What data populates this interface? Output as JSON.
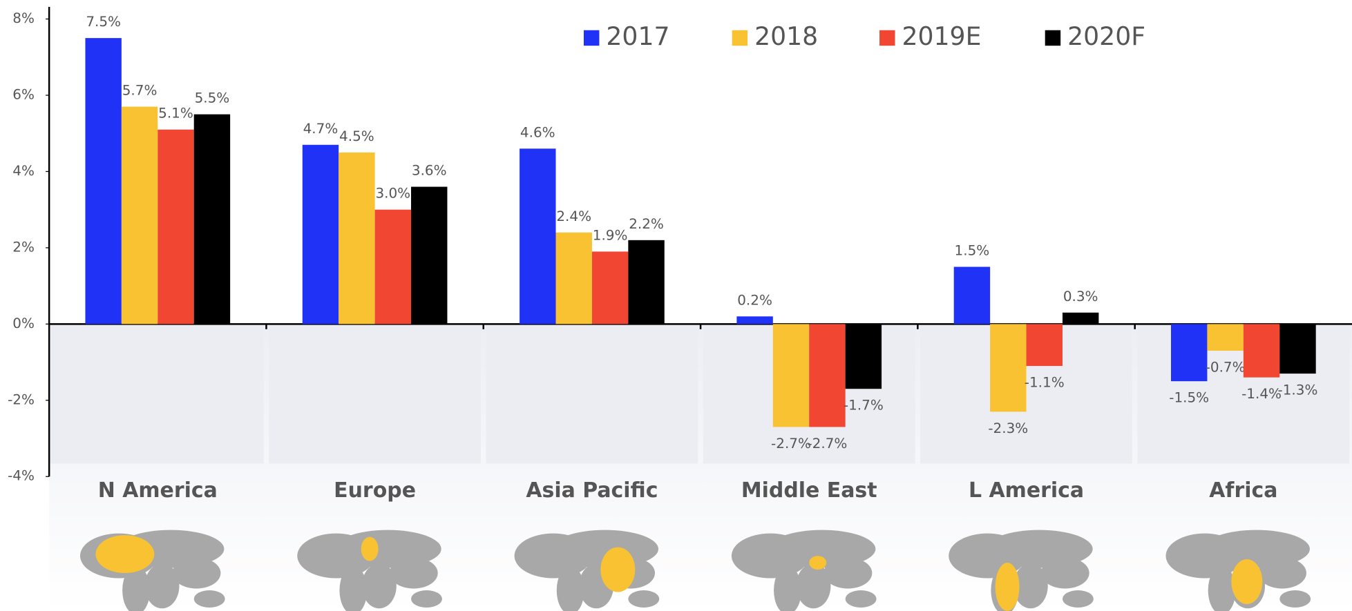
{
  "chart_data": {
    "type": "bar",
    "categories": [
      "N America",
      "Europe",
      "Asia Pacific",
      "Middle East",
      "L America",
      "Africa"
    ],
    "series": [
      {
        "name": "2017",
        "color": "#2032f5",
        "values": [
          7.5,
          4.7,
          4.6,
          0.2,
          1.5,
          -1.5
        ],
        "value_labels": [
          "7.5%",
          "4.7%",
          "4.6%",
          "0.2%",
          "1.5%",
          "-1.5%"
        ]
      },
      {
        "name": "2018",
        "color": "#f8c232",
        "values": [
          5.7,
          4.5,
          2.4,
          -2.7,
          -2.3,
          -0.7
        ],
        "value_labels": [
          "5.7%",
          "4.5%",
          "2.4%",
          "-2.7%",
          "-2.3%",
          "-0.7%"
        ]
      },
      {
        "name": "2019E",
        "color": "#f04632",
        "values": [
          5.1,
          3.0,
          1.9,
          -2.7,
          -1.1,
          -1.4
        ],
        "value_labels": [
          "5.1%",
          "3.0%",
          "1.9%",
          "-2.7%",
          "-1.1%",
          "-1.4%"
        ]
      },
      {
        "name": "2020F",
        "color": "#000000",
        "values": [
          5.5,
          3.6,
          2.2,
          -1.7,
          0.3,
          -1.3
        ],
        "value_labels": [
          "5.5%",
          "3.6%",
          "2.2%",
          "-1.7%",
          "0.3%",
          "-1.3%"
        ]
      }
    ],
    "ylim": [
      -4,
      8
    ],
    "yticks": [
      {
        "value": -4,
        "label": "-4%"
      },
      {
        "value": -2,
        "label": "-2%"
      },
      {
        "value": 0,
        "label": "0%"
      },
      {
        "value": 2,
        "label": "2%"
      },
      {
        "value": 4,
        "label": "4%"
      },
      {
        "value": 6,
        "label": "6%"
      },
      {
        "value": 8,
        "label": "8%"
      }
    ],
    "legend": "top"
  }
}
